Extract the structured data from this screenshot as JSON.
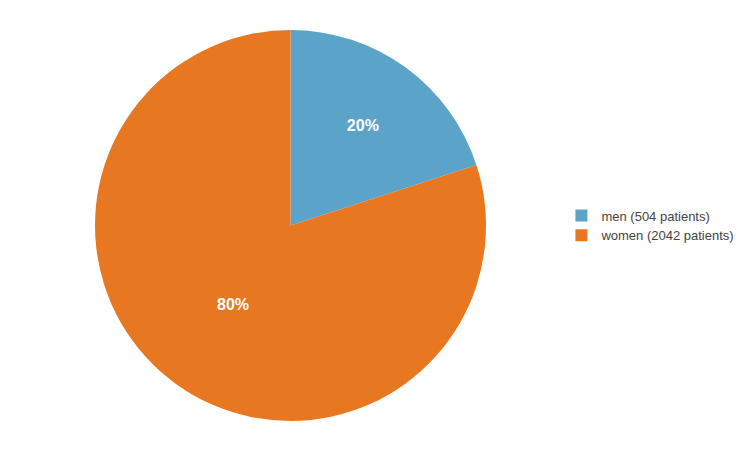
{
  "chart_data": {
    "type": "pie",
    "labels": [
      "men (504 patients)",
      "women (2042 patients)"
    ],
    "values": [
      20,
      80
    ],
    "value_labels": [
      "20%",
      "80%"
    ],
    "data_labels": true,
    "colors": [
      "#5BA3C9",
      "#E87722"
    ],
    "legend": "right"
  }
}
